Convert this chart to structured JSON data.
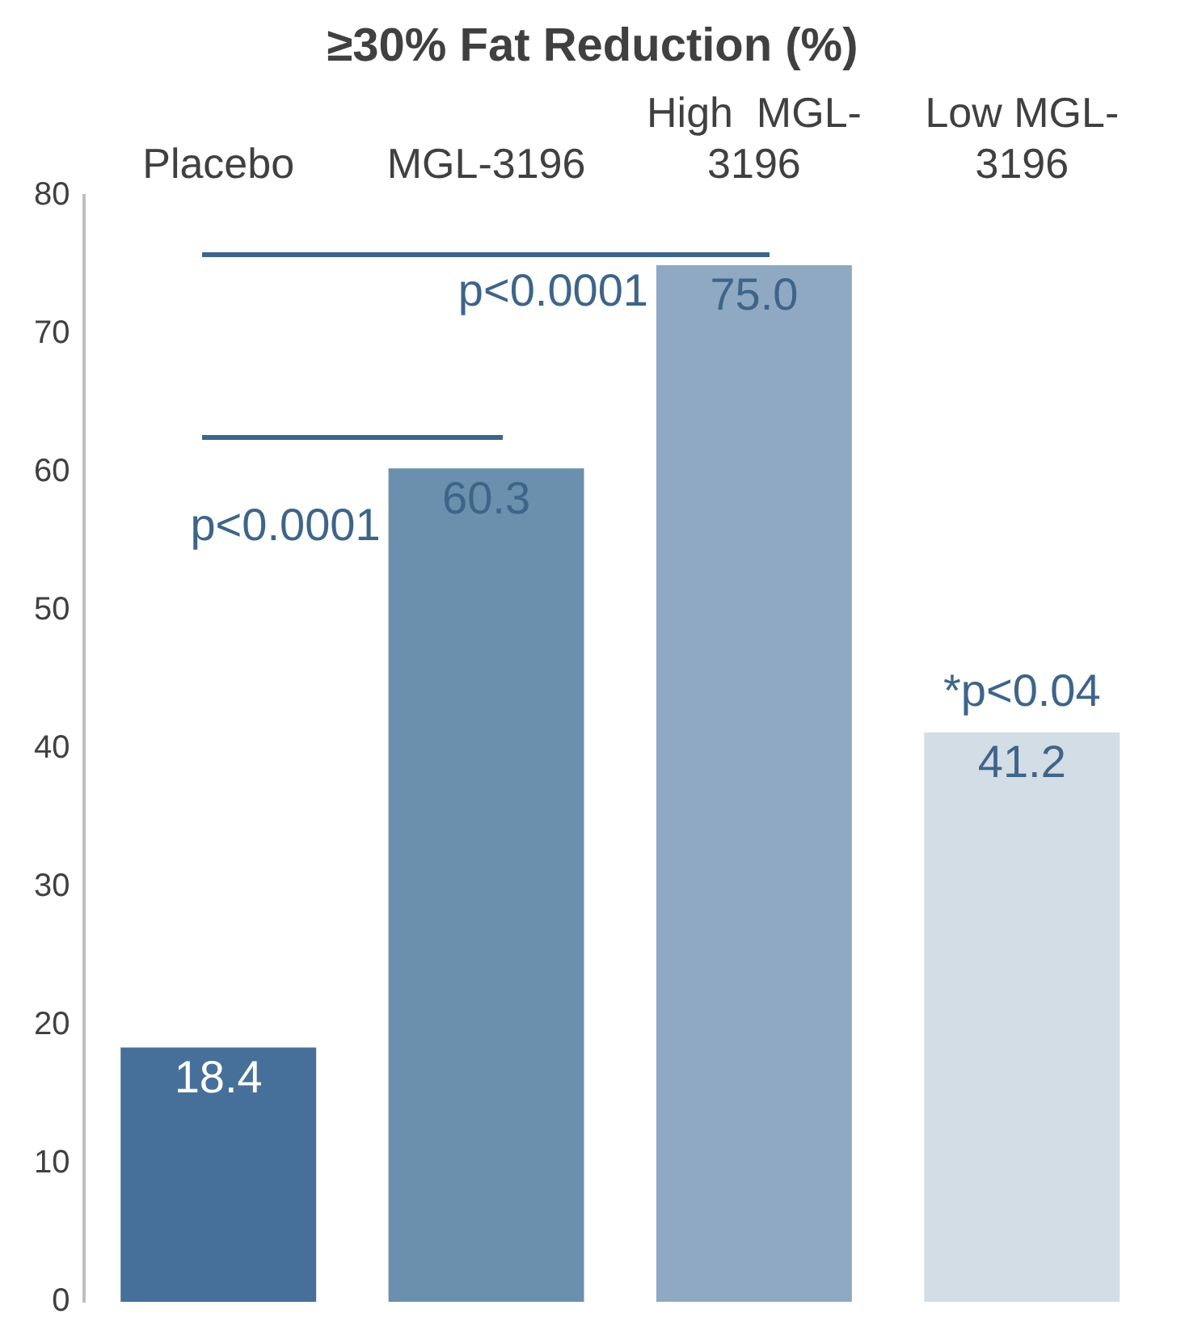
{
  "chart_data": {
    "type": "bar",
    "title": "≥30% Fat Reduction (%)",
    "categories": [
      "Placebo",
      "MGL-3196",
      "High  MGL-3196",
      "Low MGL-3196"
    ],
    "values": [
      18.4,
      60.3,
      75.0,
      41.2
    ],
    "colors": [
      "#46709a",
      "#6a90ad",
      "#8ea9c1",
      "#d3dde6"
    ],
    "ylim": [
      0,
      80
    ],
    "yticks": [
      0,
      10,
      20,
      30,
      40,
      50,
      60,
      70,
      80
    ],
    "value_labels": [
      "18.4",
      "60.3",
      "75.0",
      "41.2"
    ],
    "grid": false,
    "legend": false,
    "annotations": [
      "p<0.0001",
      "p<0.0001",
      "*p<0.04"
    ]
  }
}
